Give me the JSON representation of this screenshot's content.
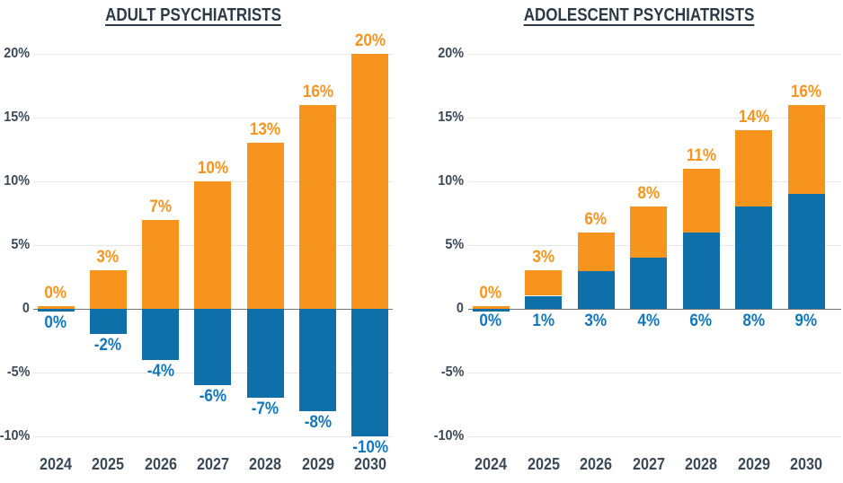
{
  "colors": {
    "orange": "#F7941E",
    "blue": "#0E6FA9",
    "orange_label": "#F7941E",
    "blue_label": "#1277BC",
    "axis_text": "#3C4A58",
    "title_text": "#2C3946",
    "gridline": "#E6E6E6",
    "zero_line": "#777777",
    "background": "#FFFFFF"
  },
  "chart_data": [
    {
      "type": "bar",
      "title": "ADULT PSYCHIATRISTS",
      "categories": [
        "2024",
        "2025",
        "2026",
        "2027",
        "2028",
        "2029",
        "2030"
      ],
      "y_axis": {
        "ticks": [
          "20%",
          "15%",
          "10%",
          "5%",
          "0",
          "-5%",
          "-10%"
        ],
        "tick_values": [
          20,
          15,
          10,
          5,
          0,
          -5,
          -10
        ],
        "range": [
          -10,
          20
        ]
      },
      "grid": true,
      "legend": "none",
      "series": [
        {
          "name": "orange-positive-growth",
          "color_key": "orange",
          "values": [
            0,
            3,
            7,
            10,
            13,
            16,
            20
          ],
          "labels": [
            "0%",
            "3%",
            "7%",
            "10%",
            "13%",
            "16%",
            "20%"
          ],
          "label_position": "above-bar"
        },
        {
          "name": "blue-negative-change",
          "color_key": "blue",
          "values": [
            0,
            -2,
            -4,
            -6,
            -7,
            -8,
            -10
          ],
          "labels": [
            "0%",
            "-2%",
            "-4%",
            "-6%",
            "-7%",
            "-8%",
            "-10%"
          ],
          "label_position": "below-bar"
        }
      ]
    },
    {
      "type": "stacked-bar",
      "title": "ADOLESCENT PSYCHIATRISTS",
      "categories": [
        "2024",
        "2025",
        "2026",
        "2027",
        "2028",
        "2029",
        "2030"
      ],
      "y_axis": {
        "ticks": [
          "20%",
          "15%",
          "10%",
          "5%",
          "0",
          "-5%",
          "-10%"
        ],
        "tick_values": [
          20,
          15,
          10,
          5,
          0,
          -5,
          -10
        ],
        "range": [
          -10,
          20
        ]
      },
      "grid": true,
      "legend": "none",
      "series": [
        {
          "name": "blue-bottom-segment",
          "color_key": "blue",
          "values": [
            0,
            1,
            3,
            4,
            6,
            8,
            9
          ],
          "labels": [
            "0%",
            "1%",
            "3%",
            "4%",
            "6%",
            "8%",
            "9%"
          ],
          "label_position": "below-axis"
        },
        {
          "name": "orange-top-segment",
          "color_key": "orange",
          "stack_totals": [
            0,
            3,
            6,
            8,
            11,
            14,
            16
          ],
          "labels": [
            "0%",
            "3%",
            "6%",
            "8%",
            "11%",
            "14%",
            "16%"
          ],
          "label_position": "above-bar"
        }
      ]
    }
  ]
}
